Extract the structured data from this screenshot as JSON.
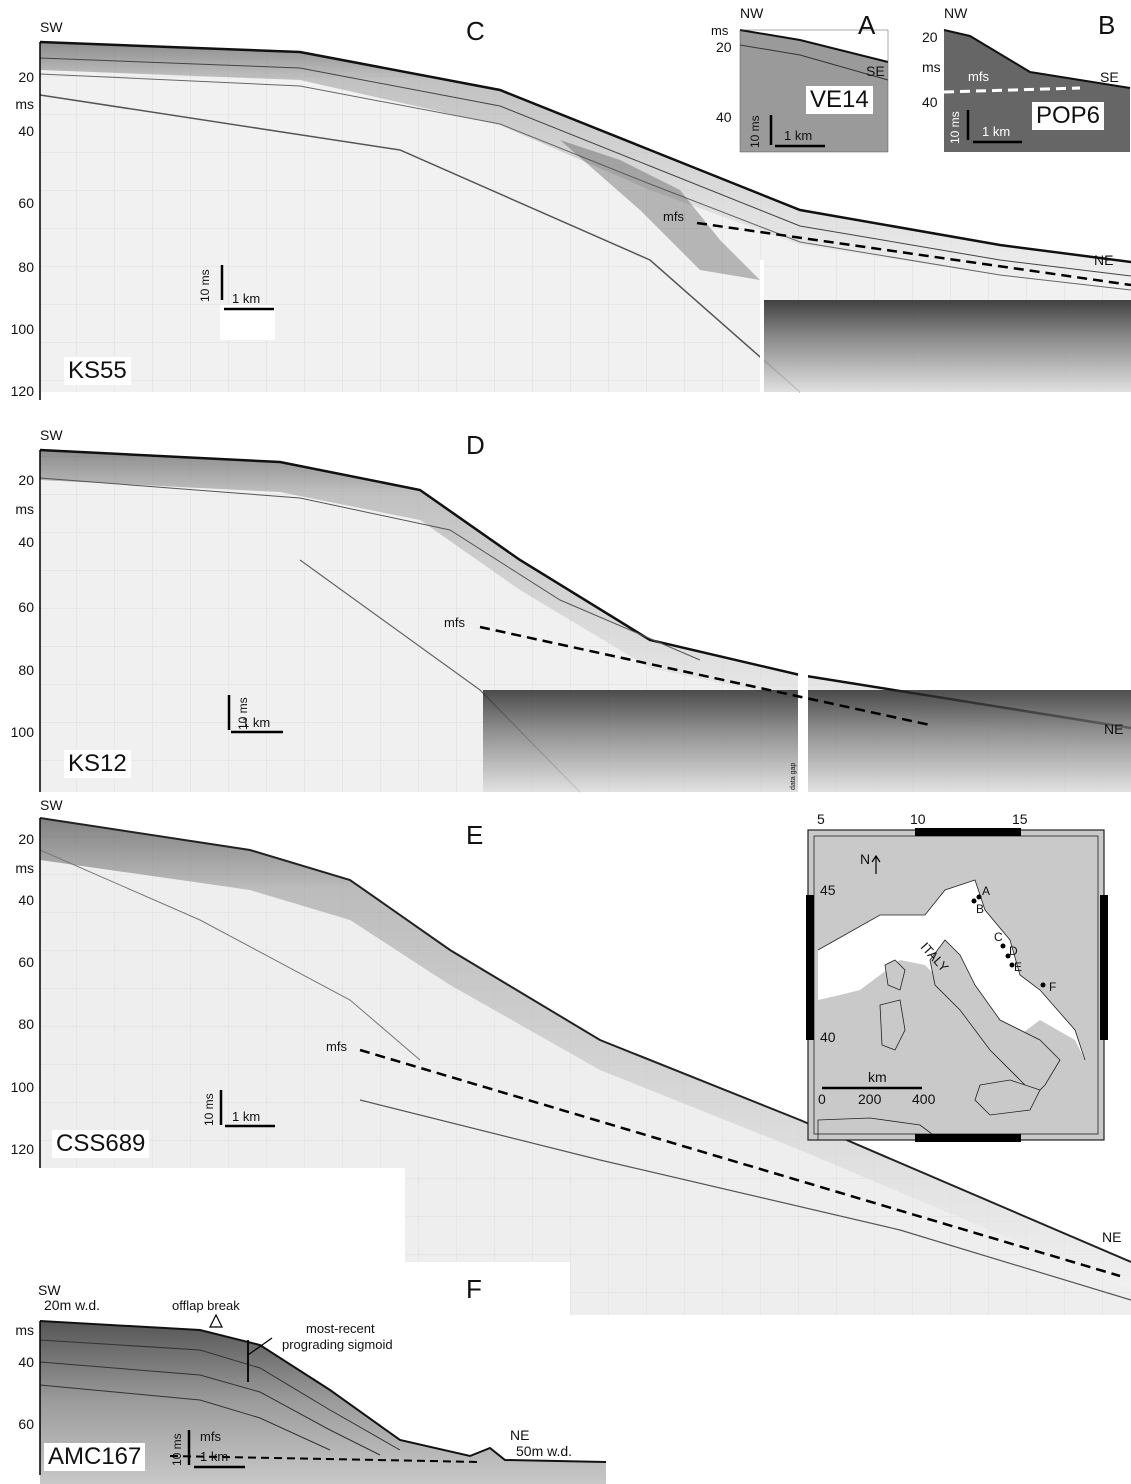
{
  "panels": {
    "C": {
      "letter": "C",
      "sw": "SW",
      "ne": "NE",
      "unit": "ms",
      "mfs": "mfs",
      "name": "KS55",
      "vscale": "10 ms",
      "hscale": "1 km",
      "ticks": [
        "20",
        "40",
        "60",
        "80",
        "100",
        "120"
      ]
    },
    "A": {
      "letter": "A",
      "nw": "NW",
      "se": "SE",
      "unit": "ms",
      "name": "VE14",
      "vscale": "10 ms",
      "hscale": "1 km",
      "ticks": [
        "20",
        "40"
      ]
    },
    "B": {
      "letter": "B",
      "nw": "NW",
      "se": "SE",
      "unit": "ms",
      "mfs": "mfs",
      "name": "POP6",
      "vscale": "10 ms",
      "hscale": "1 km",
      "ticks": [
        "20",
        "40"
      ]
    },
    "D": {
      "letter": "D",
      "sw": "SW",
      "ne": "NE",
      "unit": "ms",
      "mfs": "mfs",
      "name": "KS12",
      "vscale": "10 ms",
      "hscale": "1 km",
      "gap": "data gap",
      "ticks": [
        "20",
        "40",
        "60",
        "80",
        "100"
      ]
    },
    "E": {
      "letter": "E",
      "sw": "SW",
      "ne": "NE",
      "unit": "ms",
      "mfs": "mfs",
      "name": "CSS689",
      "vscale": "10 ms",
      "hscale": "1 km",
      "ticks": [
        "20",
        "40",
        "60",
        "80",
        "100",
        "120"
      ]
    },
    "F": {
      "letter": "F",
      "sw": "SW",
      "sw_depth": "20m w.d.",
      "ne": "NE",
      "ne_depth": "50m w.d.",
      "unit": "ms",
      "mfs": "mfs",
      "offlap": "offlap break",
      "sigmoid_1": "most-recent",
      "sigmoid_2": "prograding sigmoid",
      "name": "AMC167",
      "vscale": "10 ms",
      "hscale": "1 km",
      "ticks": [
        "40",
        "60"
      ]
    }
  },
  "map": {
    "lon_ticks": [
      "5",
      "10",
      "15"
    ],
    "lat_ticks": [
      "45",
      "40"
    ],
    "north": "N",
    "country": "ITALY",
    "sites": [
      "A",
      "B",
      "C",
      "D",
      "E",
      "F"
    ],
    "scale_unit": "km",
    "scale_ticks": [
      "0",
      "200",
      "400"
    ]
  }
}
